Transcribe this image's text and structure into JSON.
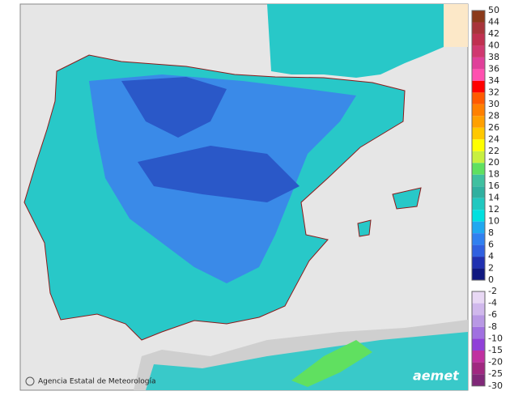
{
  "legend": {
    "positive_labels": [
      "50",
      "44",
      "42",
      "40",
      "38",
      "36",
      "34",
      "32",
      "30",
      "28",
      "26",
      "24",
      "22",
      "20",
      "18",
      "16",
      "14",
      "12",
      "10",
      "8",
      "6",
      "4",
      "2",
      "0"
    ],
    "positive_colors": [
      "#8b3a1a",
      "#a8343a",
      "#c03050",
      "#d03870",
      "#e0409a",
      "#ff50b0",
      "#ff0000",
      "#ff5a00",
      "#ff8000",
      "#ffa000",
      "#ffc800",
      "#ffff00",
      "#c8f040",
      "#60e060",
      "#40c0a0",
      "#30b0a0",
      "#20c8c0",
      "#00e0e0",
      "#20a8f0",
      "#3080f0",
      "#3060e0",
      "#2030b0",
      "#101880"
    ],
    "negative_labels": [
      "-2",
      "-4",
      "-6",
      "-8",
      "-10",
      "-15",
      "-20",
      "-25",
      "-30"
    ],
    "negative_colors": [
      "#e8d8f4",
      "#d0b8ec",
      "#b898e4",
      "#a070e0",
      "#9040d8",
      "#c030a0",
      "#a02880",
      "#802878"
    ]
  },
  "credit": "Agencia Estatal de Meteorología",
  "logo": "aemet"
}
